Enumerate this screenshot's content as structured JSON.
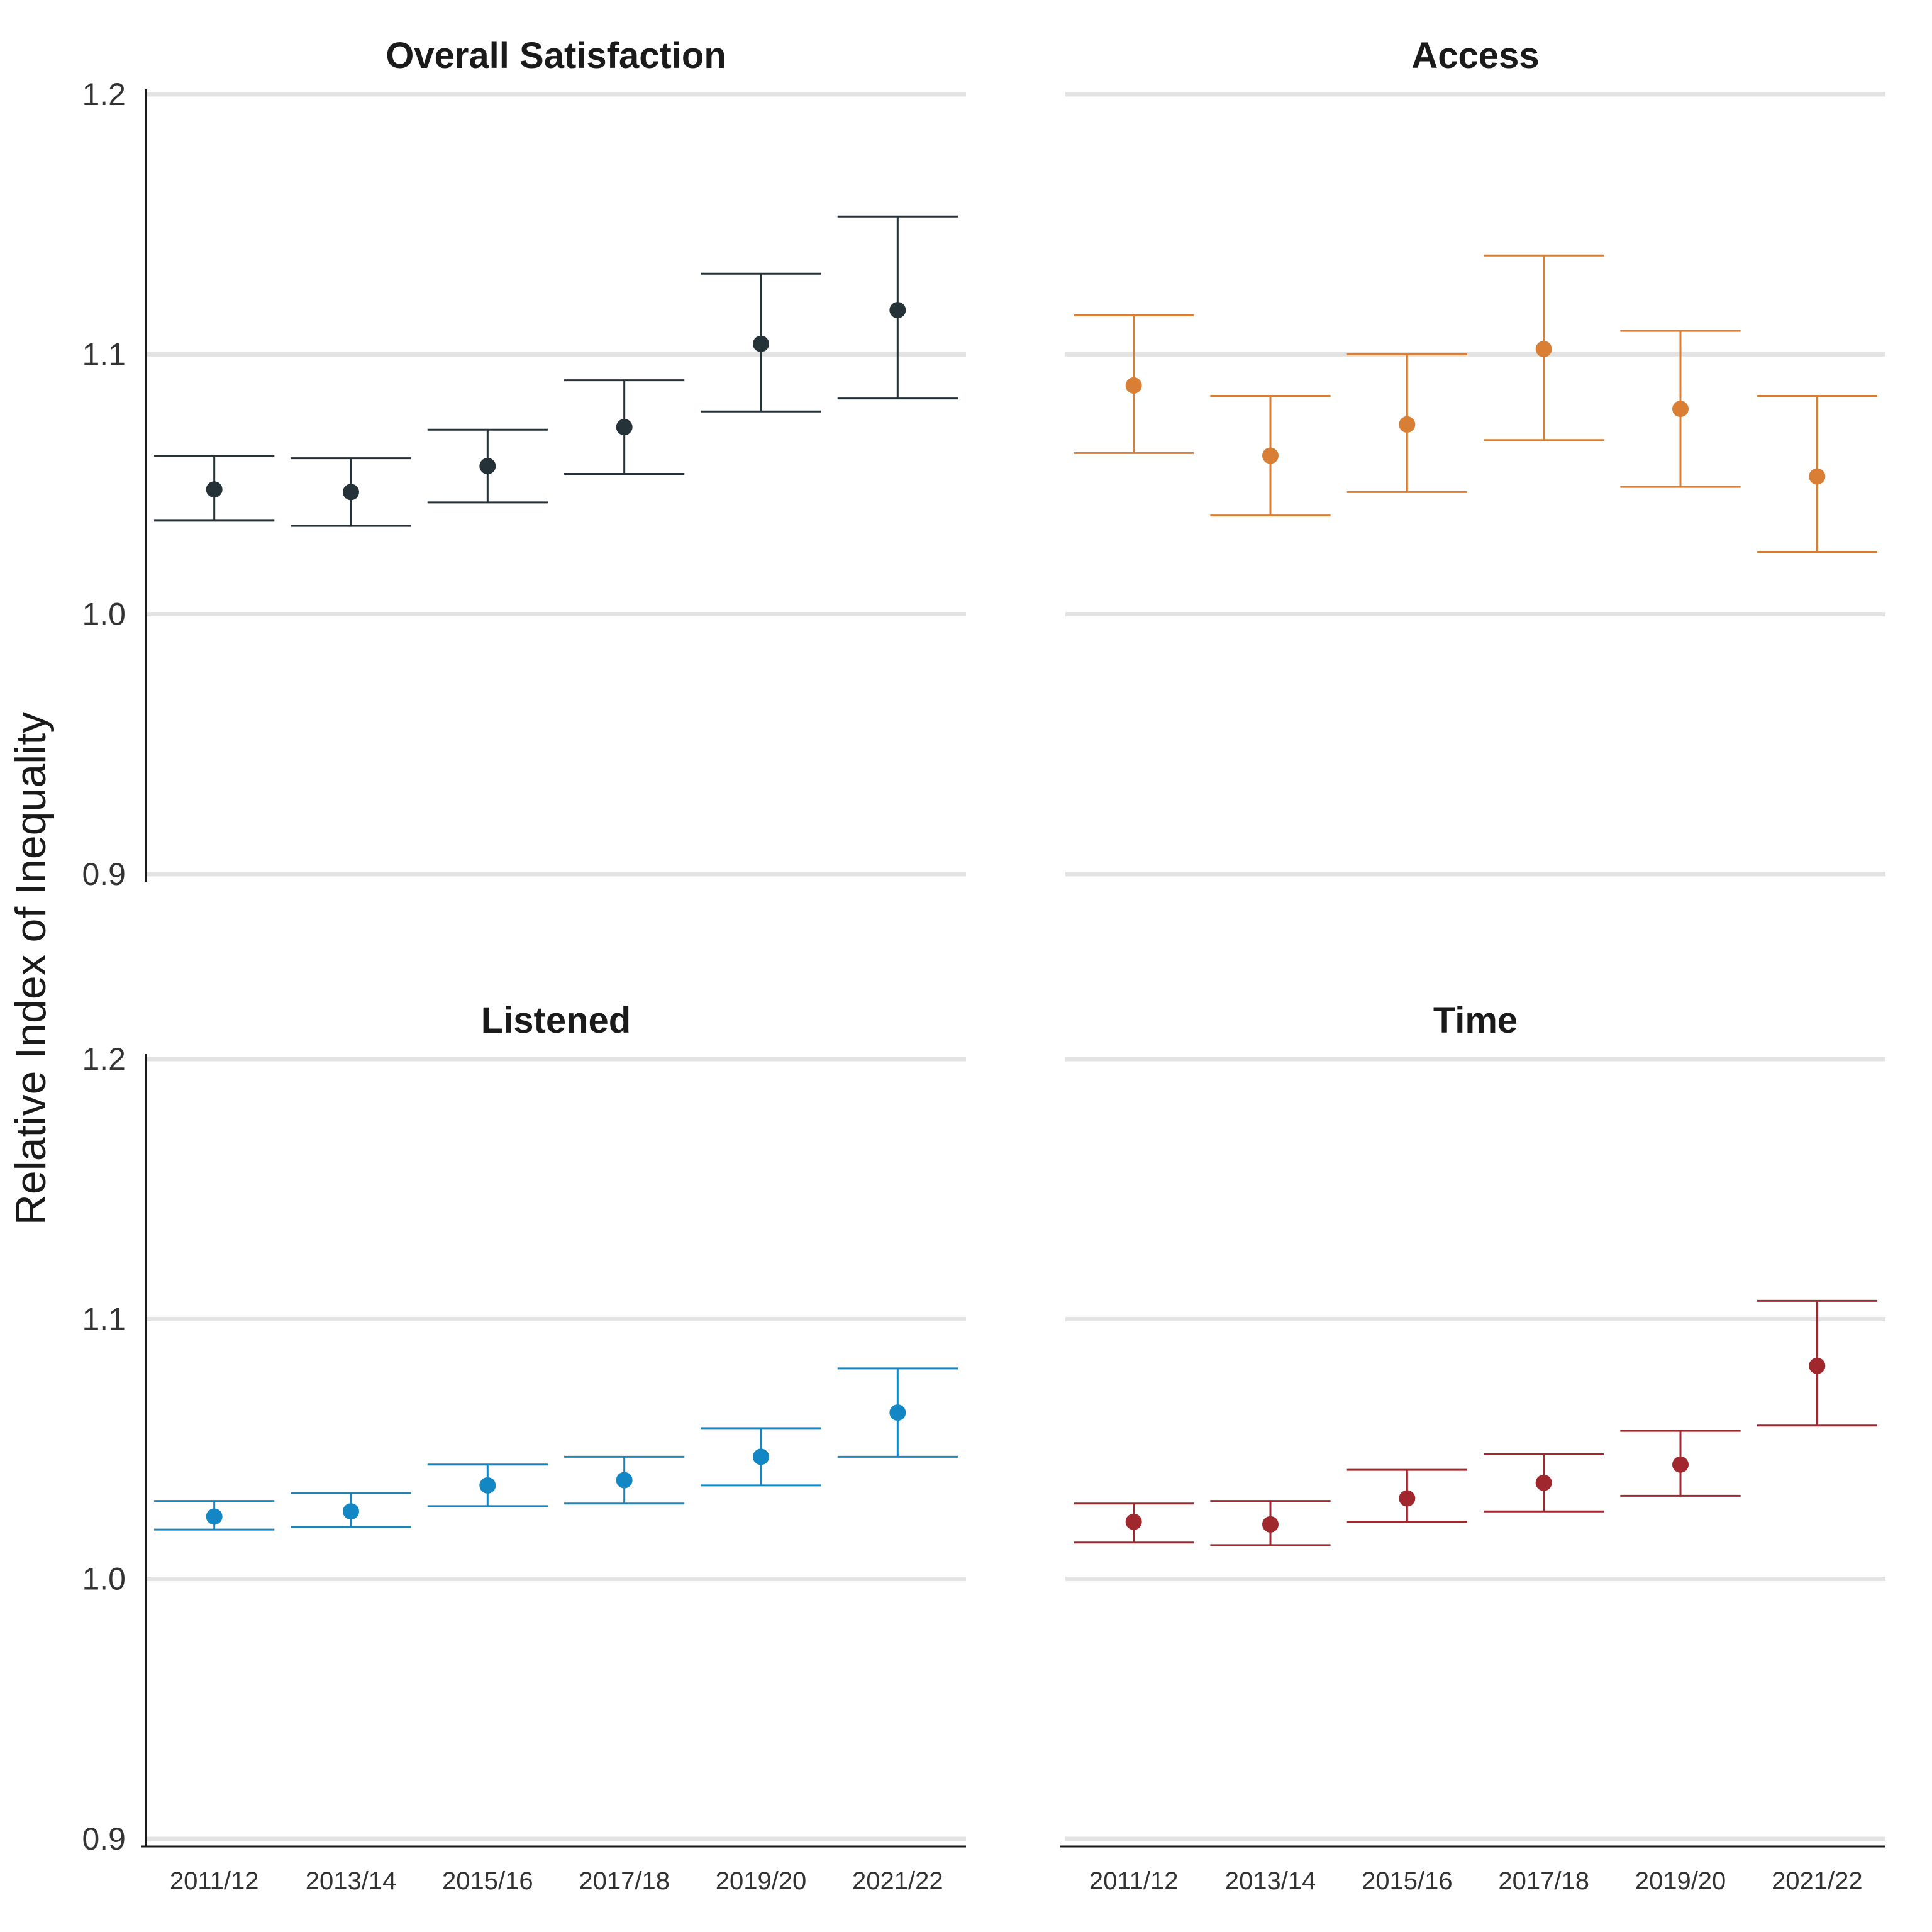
{
  "chart_data": {
    "type": "scatter",
    "layout": "2x2 facets",
    "ylabel": "Relative Index of Inequality",
    "ylim": [
      0.9,
      1.2
    ],
    "yticks": [
      "0.9",
      "1.0",
      "1.1",
      "1.2"
    ],
    "categories": [
      "2011/12",
      "2013/14",
      "2015/16",
      "2017/18",
      "2019/20",
      "2021/22"
    ],
    "grid": true,
    "panels": [
      {
        "title": "Overall Satisfaction",
        "color": "#253238",
        "values": [
          1.048,
          1.047,
          1.057,
          1.072,
          1.104,
          1.117
        ],
        "lower": [
          1.036,
          1.034,
          1.043,
          1.054,
          1.078,
          1.083
        ],
        "upper": [
          1.061,
          1.06,
          1.071,
          1.09,
          1.131,
          1.153
        ]
      },
      {
        "title": "Access",
        "color": "#d87e35",
        "values": [
          1.088,
          1.061,
          1.073,
          1.102,
          1.079,
          1.053
        ],
        "lower": [
          1.062,
          1.038,
          1.047,
          1.067,
          1.049,
          1.024
        ],
        "upper": [
          1.115,
          1.084,
          1.1,
          1.138,
          1.109,
          1.084
        ]
      },
      {
        "title": "Listened",
        "color": "#1287c4",
        "values": [
          1.024,
          1.026,
          1.036,
          1.038,
          1.047,
          1.064
        ],
        "lower": [
          1.019,
          1.02,
          1.028,
          1.029,
          1.036,
          1.047
        ],
        "upper": [
          1.03,
          1.033,
          1.044,
          1.047,
          1.058,
          1.081
        ]
      },
      {
        "title": "Time",
        "color": "#a1272f",
        "values": [
          1.022,
          1.021,
          1.031,
          1.037,
          1.044,
          1.082
        ],
        "lower": [
          1.014,
          1.013,
          1.022,
          1.026,
          1.032,
          1.059
        ],
        "upper": [
          1.029,
          1.03,
          1.042,
          1.048,
          1.057,
          1.107
        ]
      }
    ]
  }
}
